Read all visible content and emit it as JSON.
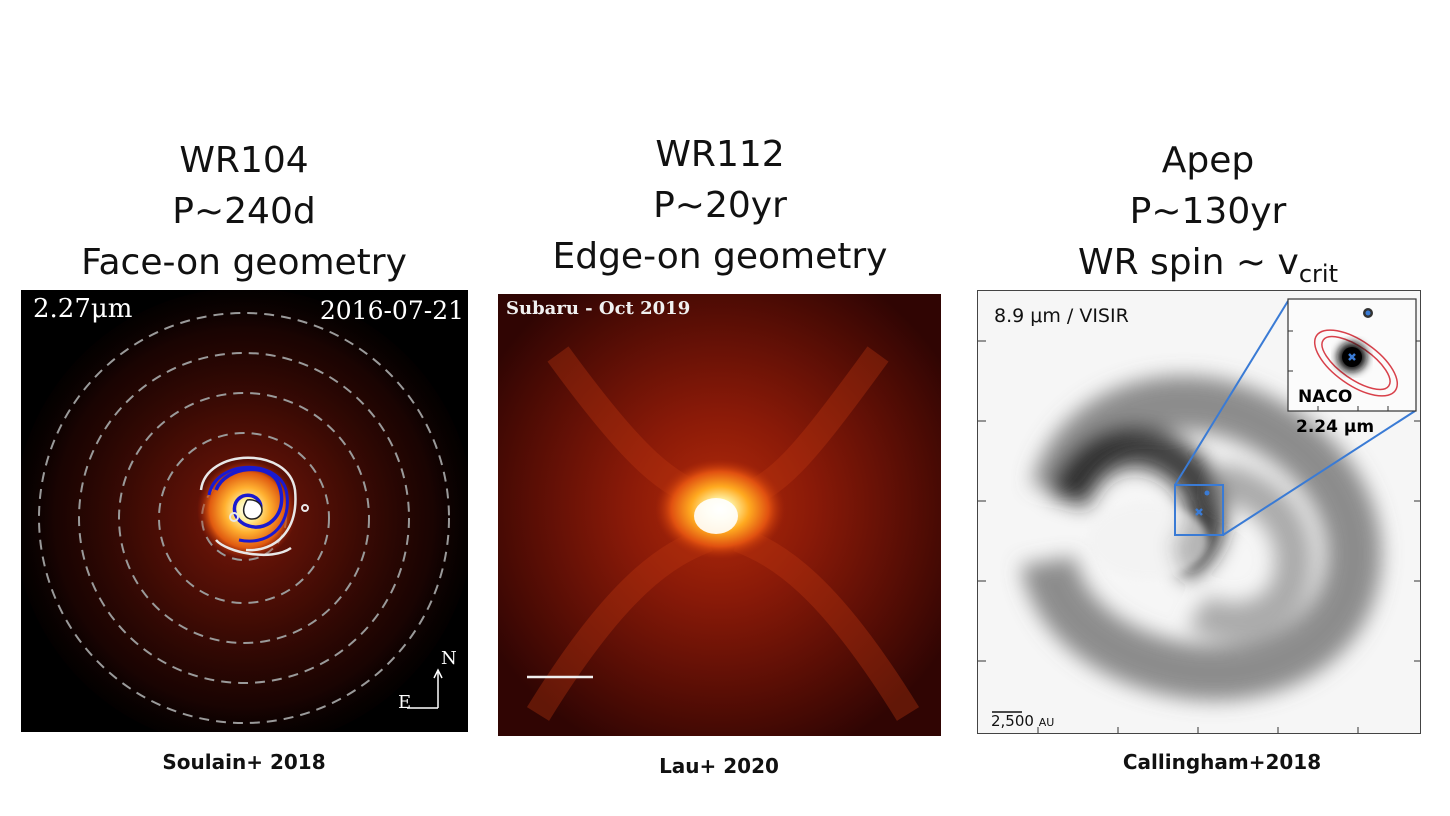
{
  "panels": [
    {
      "title_lines": [
        "WR104",
        "P~240d",
        "Face-on geometry"
      ],
      "wavelength": "2.27μm",
      "date": "2016-07-21",
      "compass_north": "N",
      "compass_east": "E",
      "caption": "Soulain+ 2018"
    },
    {
      "title_lines": [
        "WR112",
        "P~20yr",
        "Edge-on geometry"
      ],
      "image_label": "Subaru - Oct 2019",
      "caption": "Lau+ 2020"
    },
    {
      "title_lines": [
        "Apep",
        "P~130yr",
        "WR spin ~ v",
        "crit"
      ],
      "image_label": "8.9 μm / VISIR",
      "inset_label": "NACO",
      "inset_wavelength": "2.24 μm",
      "scalebar_value": "2,500",
      "scalebar_unit": "AU",
      "caption": "Callingham+2018"
    }
  ],
  "colors": {
    "accent_blue": "#3a7bd5",
    "contour_red": "#d8404a"
  }
}
